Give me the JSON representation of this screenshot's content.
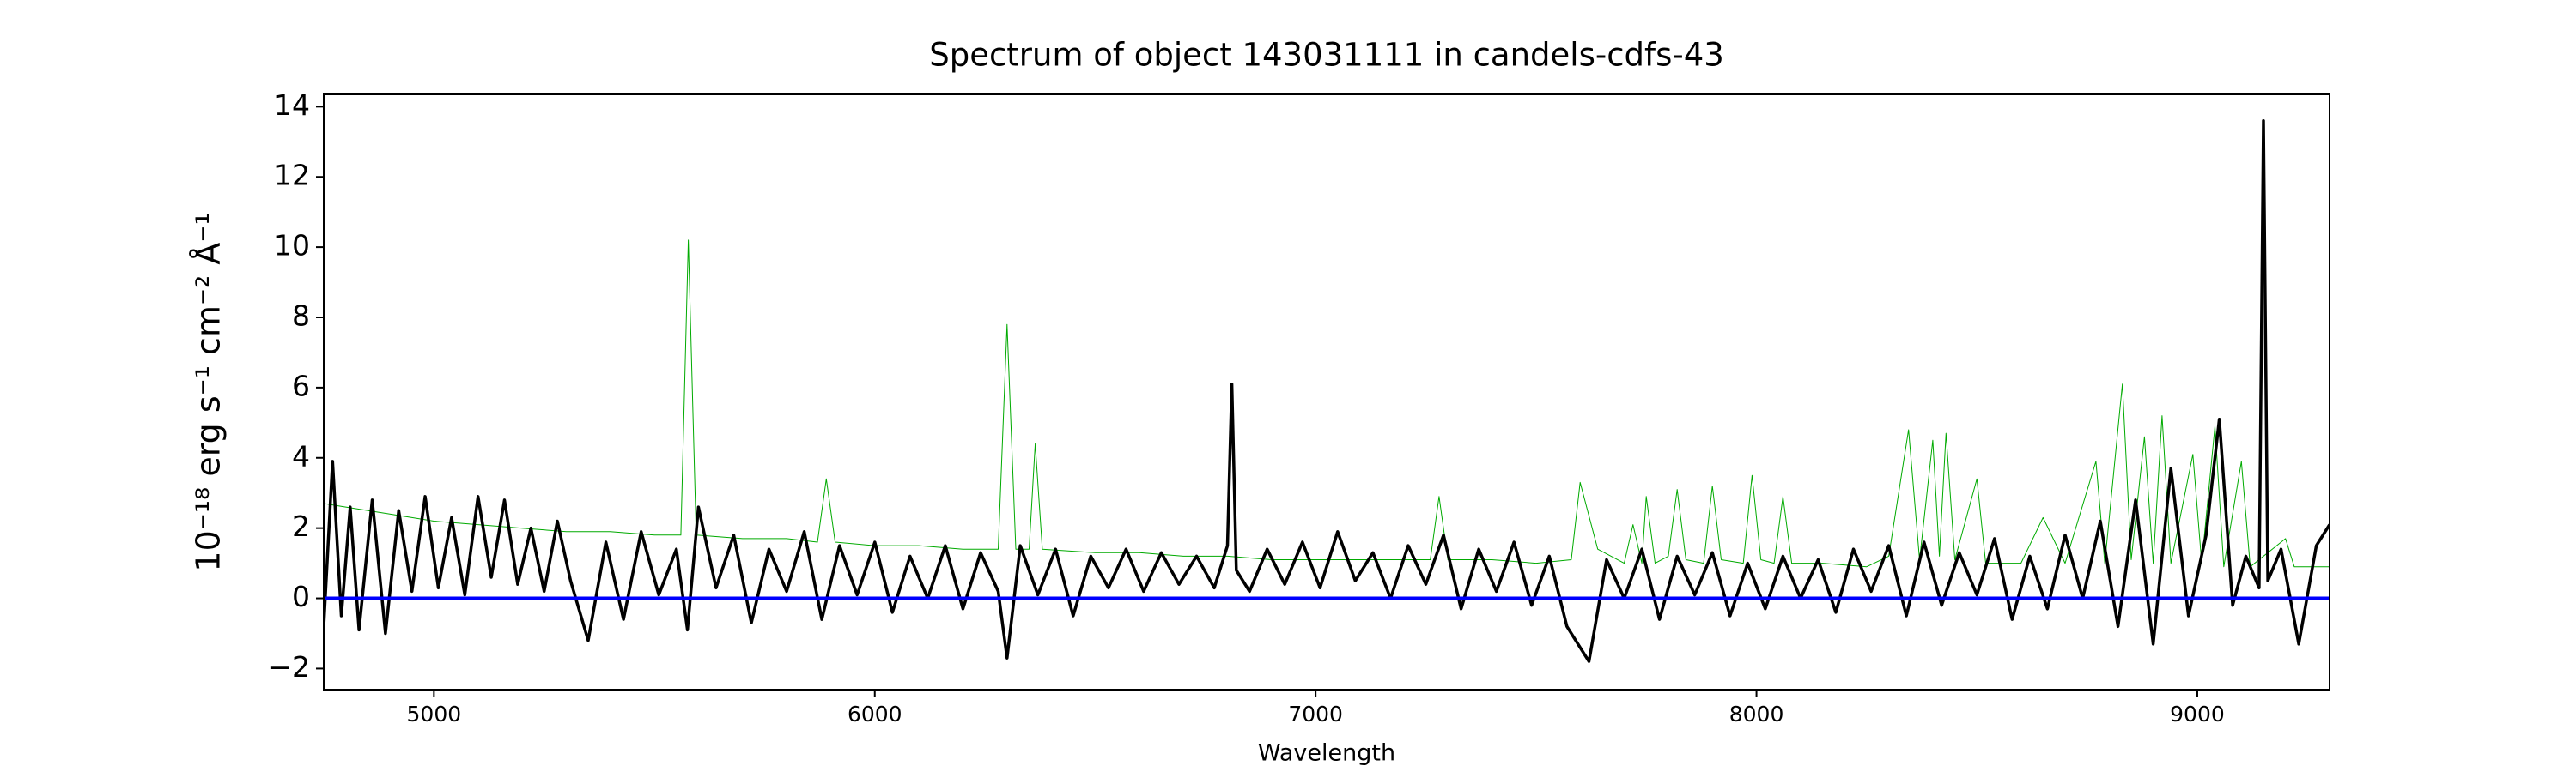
{
  "chart_data": {
    "type": "line",
    "title": "Spectrum of object 143031111 in candels-cdfs-43",
    "xlabel": "Wavelength",
    "ylabel": "10⁻¹⁸ erg s⁻¹ cm⁻² Å⁻¹",
    "xlim": [
      4750,
      9300
    ],
    "ylim": [
      -2.6,
      14.35
    ],
    "xticks": [
      5000,
      6000,
      7000,
      8000,
      9000
    ],
    "yticks": [
      {
        "value": -2,
        "label": "−2"
      },
      0,
      2,
      4,
      6,
      8,
      10,
      12,
      14
    ],
    "series": [
      {
        "color": "#00aa00",
        "width": 1,
        "x": [
          4750,
          4800,
          4900,
          5000,
          5100,
          5200,
          5300,
          5400,
          5500,
          5560,
          5577,
          5595,
          5700,
          5800,
          5870,
          5890,
          5910,
          6000,
          6100,
          6200,
          6280,
          6300,
          6320,
          6350,
          6364,
          6380,
          6500,
          6600,
          6700,
          6800,
          6900,
          7000,
          7100,
          7200,
          7260,
          7280,
          7300,
          7400,
          7500,
          7580,
          7600,
          7640,
          7700,
          7720,
          7740,
          7750,
          7770,
          7800,
          7820,
          7840,
          7880,
          7900,
          7920,
          7970,
          7990,
          8010,
          8040,
          8060,
          8080,
          8150,
          8250,
          8300,
          8345,
          8370,
          8400,
          8415,
          8430,
          8450,
          8500,
          8520,
          8600,
          8650,
          8700,
          8770,
          8790,
          8830,
          8850,
          8880,
          8900,
          8920,
          8940,
          8990,
          9010,
          9040,
          9060,
          9100,
          9120,
          9200,
          9220,
          9300
        ],
        "values": [
          2.7,
          2.6,
          2.4,
          2.2,
          2.1,
          2.0,
          1.9,
          1.9,
          1.8,
          1.8,
          10.2,
          1.8,
          1.7,
          1.7,
          1.6,
          3.4,
          1.6,
          1.5,
          1.5,
          1.4,
          1.4,
          7.8,
          1.4,
          1.4,
          4.4,
          1.4,
          1.3,
          1.3,
          1.2,
          1.2,
          1.1,
          1.1,
          1.1,
          1.1,
          1.1,
          2.9,
          1.1,
          1.1,
          1.0,
          1.1,
          3.3,
          1.4,
          1.0,
          2.1,
          1.0,
          2.9,
          1.0,
          1.2,
          3.1,
          1.1,
          1.0,
          3.2,
          1.1,
          1.0,
          3.5,
          1.1,
          1.0,
          2.9,
          1.0,
          1.0,
          0.9,
          1.2,
          4.8,
          1.1,
          4.5,
          1.2,
          4.7,
          1.1,
          3.4,
          1.0,
          1.0,
          2.3,
          1.0,
          3.9,
          1.0,
          6.1,
          1.1,
          4.6,
          1.0,
          5.2,
          1.0,
          4.1,
          1.0,
          4.9,
          0.9,
          3.9,
          0.9,
          1.7,
          0.9,
          0.9
        ]
      },
      {
        "color": "#000000",
        "width": 3.5,
        "x": [
          4750,
          4770,
          4790,
          4810,
          4830,
          4860,
          4890,
          4920,
          4950,
          4980,
          5010,
          5040,
          5070,
          5100,
          5130,
          5160,
          5190,
          5220,
          5250,
          5280,
          5310,
          5350,
          5390,
          5430,
          5470,
          5510,
          5550,
          5575,
          5600,
          5640,
          5680,
          5720,
          5760,
          5800,
          5840,
          5880,
          5920,
          5960,
          6000,
          6040,
          6080,
          6120,
          6160,
          6200,
          6240,
          6280,
          6300,
          6330,
          6370,
          6410,
          6450,
          6490,
          6530,
          6570,
          6610,
          6650,
          6690,
          6730,
          6770,
          6800,
          6810,
          6820,
          6850,
          6890,
          6930,
          6970,
          7010,
          7050,
          7090,
          7130,
          7170,
          7210,
          7250,
          7290,
          7330,
          7370,
          7410,
          7450,
          7490,
          7530,
          7570,
          7620,
          7660,
          7700,
          7740,
          7780,
          7820,
          7860,
          7900,
          7940,
          7980,
          8020,
          8060,
          8100,
          8140,
          8180,
          8220,
          8260,
          8300,
          8340,
          8380,
          8420,
          8460,
          8500,
          8540,
          8580,
          8620,
          8660,
          8700,
          8740,
          8780,
          8820,
          8860,
          8900,
          8940,
          8980,
          9020,
          9050,
          9080,
          9110,
          9140,
          9150,
          9160,
          9190,
          9230,
          9270,
          9300
        ],
        "values": [
          -0.8,
          3.9,
          -0.5,
          2.6,
          -0.9,
          2.8,
          -1.0,
          2.5,
          0.2,
          2.9,
          0.3,
          2.3,
          0.1,
          2.9,
          0.6,
          2.8,
          0.4,
          2.0,
          0.2,
          2.2,
          0.5,
          -1.2,
          1.6,
          -0.6,
          1.9,
          0.1,
          1.4,
          -0.9,
          2.6,
          0.3,
          1.8,
          -0.7,
          1.4,
          0.2,
          1.9,
          -0.6,
          1.5,
          0.1,
          1.6,
          -0.4,
          1.2,
          0.0,
          1.5,
          -0.3,
          1.3,
          0.2,
          -1.7,
          1.5,
          0.1,
          1.4,
          -0.5,
          1.2,
          0.3,
          1.4,
          0.2,
          1.3,
          0.4,
          1.2,
          0.3,
          1.5,
          6.1,
          0.8,
          0.2,
          1.4,
          0.4,
          1.6,
          0.3,
          1.9,
          0.5,
          1.3,
          0.0,
          1.5,
          0.4,
          1.8,
          -0.3,
          1.4,
          0.2,
          1.6,
          -0.2,
          1.2,
          -0.8,
          -1.8,
          1.1,
          0.0,
          1.4,
          -0.6,
          1.2,
          0.1,
          1.3,
          -0.5,
          1.0,
          -0.3,
          1.2,
          0.0,
          1.1,
          -0.4,
          1.4,
          0.2,
          1.5,
          -0.5,
          1.6,
          -0.2,
          1.3,
          0.1,
          1.7,
          -0.6,
          1.2,
          -0.3,
          1.8,
          0.0,
          2.2,
          -0.8,
          2.8,
          -1.3,
          3.7,
          -0.5,
          1.8,
          5.1,
          -0.2,
          1.2,
          0.3,
          13.6,
          0.5,
          1.4,
          -1.3,
          1.5,
          2.1
        ]
      },
      {
        "color": "#0000ff",
        "width": 4,
        "x": [
          4750,
          9300
        ],
        "values": [
          0,
          0
        ]
      }
    ]
  }
}
